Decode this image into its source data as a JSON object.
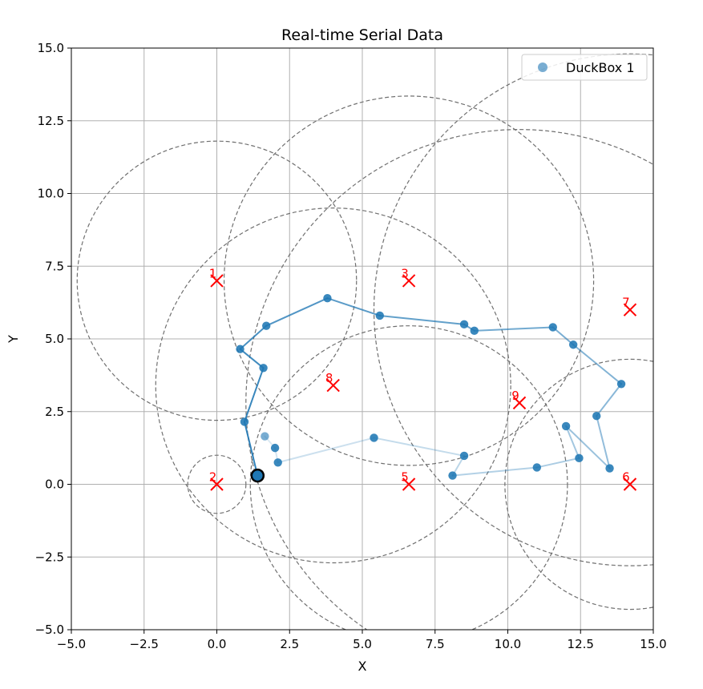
{
  "chart_data": {
    "type": "scatter",
    "title": "Real-time Serial Data",
    "xlabel": "X",
    "ylabel": "Y",
    "xlim": [
      -5.0,
      15.0
    ],
    "ylim": [
      -5.0,
      15.0
    ],
    "grid": true,
    "x_ticks": [
      -5.0,
      -2.5,
      0.0,
      2.5,
      5.0,
      7.5,
      10.0,
      12.5,
      15.0
    ],
    "y_ticks": [
      -5.0,
      -2.5,
      0.0,
      2.5,
      5.0,
      7.5,
      10.0,
      12.5,
      15.0
    ],
    "x_tick_labels": [
      "−5.0",
      "−2.5",
      "0.0",
      "2.5",
      "5.0",
      "7.5",
      "10.0",
      "12.5",
      "15.0"
    ],
    "y_tick_labels": [
      "−5.0",
      "−2.5",
      "0.0",
      "2.5",
      "5.0",
      "7.5",
      "10.0",
      "12.5",
      "15.0"
    ],
    "legend": {
      "position": "top-right",
      "entries": [
        {
          "label": "DuckBox 1",
          "color": "#1f77b4"
        }
      ]
    },
    "series": [
      {
        "name": "DuckBox 1",
        "color": "#1f77b4",
        "points": [
          {
            "x": 1.65,
            "y": 1.65
          },
          {
            "x": 2.0,
            "y": 1.25
          },
          {
            "x": 2.1,
            "y": 0.75
          },
          {
            "x": 5.4,
            "y": 1.6
          },
          {
            "x": 8.5,
            "y": 0.98
          },
          {
            "x": 8.1,
            "y": 0.3
          },
          {
            "x": 11.0,
            "y": 0.58
          },
          {
            "x": 12.45,
            "y": 0.9
          },
          {
            "x": 12.0,
            "y": 2.0
          },
          {
            "x": 13.5,
            "y": 0.55
          },
          {
            "x": 13.05,
            "y": 2.35
          },
          {
            "x": 13.9,
            "y": 3.45
          },
          {
            "x": 12.25,
            "y": 4.8
          },
          {
            "x": 11.55,
            "y": 5.4
          },
          {
            "x": 8.85,
            "y": 5.28
          },
          {
            "x": 8.5,
            "y": 5.5
          },
          {
            "x": 5.6,
            "y": 5.8
          },
          {
            "x": 3.8,
            "y": 6.4
          },
          {
            "x": 1.7,
            "y": 5.45
          },
          {
            "x": 0.8,
            "y": 4.65
          },
          {
            "x": 1.6,
            "y": 4.0
          },
          {
            "x": 0.95,
            "y": 2.15
          },
          {
            "x": 1.4,
            "y": 0.3
          }
        ],
        "current": {
          "x": 1.4,
          "y": 0.3
        }
      }
    ],
    "anchors": [
      {
        "label": "1",
        "x": 0.0,
        "y": 7.0
      },
      {
        "label": "2",
        "x": 0.0,
        "y": 0.0
      },
      {
        "label": "3",
        "x": 6.6,
        "y": 7.0
      },
      {
        "label": "5",
        "x": 6.6,
        "y": 0.0
      },
      {
        "label": "6",
        "x": 14.2,
        "y": 0.0
      },
      {
        "label": "7",
        "x": 14.2,
        "y": 6.0
      },
      {
        "label": "8",
        "x": 4.0,
        "y": 3.4
      },
      {
        "label": "9",
        "x": 10.4,
        "y": 2.8
      }
    ],
    "range_circles": [
      {
        "cx": 0.0,
        "cy": 7.0,
        "r": 4.8
      },
      {
        "cx": 0.0,
        "cy": 0.0,
        "r": 1.0
      },
      {
        "cx": 6.6,
        "cy": 7.0,
        "r": 6.35
      },
      {
        "cx": 6.6,
        "cy": 0.0,
        "r": 5.45
      },
      {
        "cx": 14.2,
        "cy": 0.0,
        "r": 4.3
      },
      {
        "cx": 14.2,
        "cy": 6.0,
        "r": 8.8
      },
      {
        "cx": 4.0,
        "cy": 3.4,
        "r": 6.1
      },
      {
        "cx": 10.4,
        "cy": 2.8,
        "r": 9.4
      }
    ],
    "colors": {
      "series": "#1f77b4",
      "anchor": "#ff0000",
      "circle": "#707070",
      "grid": "#b0b0b0",
      "current_edge": "#000000"
    }
  }
}
